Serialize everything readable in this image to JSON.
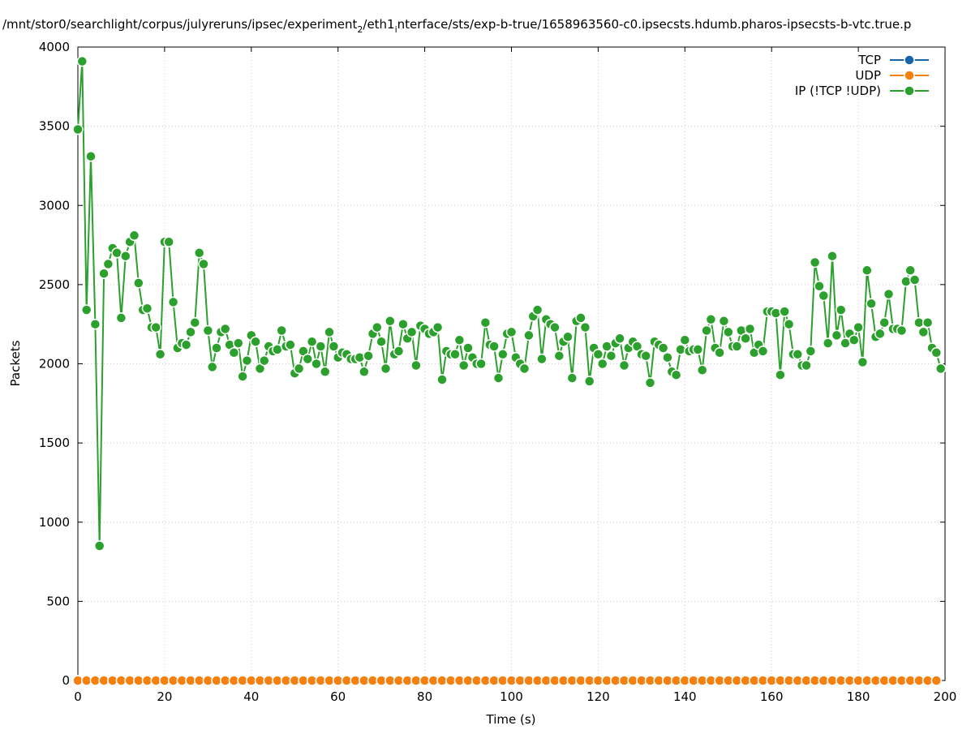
{
  "chart_data": {
    "type": "line",
    "title": "/mnt/stor0/searchlight/corpus/julyreruns/ipsec/experiment_2/eth1_interface/sts/exp-b-true/1658963560-c0.ipsecsts.hdumb.pharos-ipsecsts-b-vtc.true.p",
    "title_parts": {
      "a": "/mnt/stor0/searchlight/corpus/julyreruns/ipsec/experiment",
      "sub1": "2",
      "b": "/eth1",
      "sub2": "i",
      "c": "nterface/sts/exp-b-true/1658963560-c0.ipsecsts.hdumb.pharos-ipsecsts-b-vtc.true.p"
    },
    "xlabel": "Time (s)",
    "ylabel": "Packets",
    "xlim": [
      0,
      200
    ],
    "ylim": [
      0,
      4000
    ],
    "x_ticks": [
      0,
      20,
      40,
      60,
      80,
      100,
      120,
      140,
      160,
      180,
      200
    ],
    "y_ticks": [
      0,
      500,
      1000,
      1500,
      2000,
      2500,
      3000,
      3500,
      4000
    ],
    "grid": true,
    "legend_position": "top-right",
    "series": [
      {
        "name": "TCP",
        "color": "#1764ab",
        "x": [
          0,
          198
        ],
        "y": [
          0,
          0
        ]
      },
      {
        "name": "UDP",
        "color": "#f5800f",
        "x": [
          0,
          2,
          4,
          6,
          8,
          10,
          12,
          14,
          16,
          18,
          20,
          22,
          24,
          26,
          28,
          30,
          32,
          34,
          36,
          38,
          40,
          42,
          44,
          46,
          48,
          50,
          52,
          54,
          56,
          58,
          60,
          62,
          64,
          66,
          68,
          70,
          72,
          74,
          76,
          78,
          80,
          82,
          84,
          86,
          88,
          90,
          92,
          94,
          96,
          98,
          100,
          102,
          104,
          106,
          108,
          110,
          112,
          114,
          116,
          118,
          120,
          122,
          124,
          126,
          128,
          130,
          132,
          134,
          136,
          138,
          140,
          142,
          144,
          146,
          148,
          150,
          152,
          154,
          156,
          158,
          160,
          162,
          164,
          166,
          168,
          170,
          172,
          174,
          176,
          178,
          180,
          182,
          184,
          186,
          188,
          190,
          192,
          194,
          196,
          198
        ],
        "y": [
          0,
          0,
          0,
          0,
          0,
          0,
          0,
          0,
          0,
          0,
          0,
          0,
          0,
          0,
          0,
          0,
          0,
          0,
          0,
          0,
          0,
          0,
          0,
          0,
          0,
          0,
          0,
          0,
          0,
          0,
          0,
          0,
          0,
          0,
          0,
          0,
          0,
          0,
          0,
          0,
          0,
          0,
          0,
          0,
          0,
          0,
          0,
          0,
          0,
          0,
          0,
          0,
          0,
          0,
          0,
          0,
          0,
          0,
          0,
          0,
          0,
          0,
          0,
          0,
          0,
          0,
          0,
          0,
          0,
          0,
          0,
          0,
          0,
          0,
          0,
          0,
          0,
          0,
          0,
          0,
          0,
          0,
          0,
          0,
          0,
          0,
          0,
          0,
          0,
          0,
          0,
          0,
          0,
          0,
          0,
          0,
          0,
          0,
          0,
          0
        ]
      },
      {
        "name": "IP (!TCP  !UDP)",
        "color": "#2ca02c",
        "x": [
          0,
          1,
          2,
          3,
          4,
          5,
          6,
          7,
          8,
          9,
          10,
          11,
          12,
          13,
          14,
          15,
          16,
          17,
          18,
          19,
          20,
          21,
          22,
          23,
          24,
          25,
          26,
          27,
          28,
          29,
          30,
          31,
          32,
          33,
          34,
          35,
          36,
          37,
          38,
          39,
          40,
          41,
          42,
          43,
          44,
          45,
          46,
          47,
          48,
          49,
          50,
          51,
          52,
          53,
          54,
          55,
          56,
          57,
          58,
          59,
          60,
          61,
          62,
          63,
          64,
          65,
          66,
          67,
          68,
          69,
          70,
          71,
          72,
          73,
          74,
          75,
          76,
          77,
          78,
          79,
          80,
          81,
          82,
          83,
          84,
          85,
          86,
          87,
          88,
          89,
          90,
          91,
          92,
          93,
          94,
          95,
          96,
          97,
          98,
          99,
          100,
          101,
          102,
          103,
          104,
          105,
          106,
          107,
          108,
          109,
          110,
          111,
          112,
          113,
          114,
          115,
          116,
          117,
          118,
          119,
          120,
          121,
          122,
          123,
          124,
          125,
          126,
          127,
          128,
          129,
          130,
          131,
          132,
          133,
          134,
          135,
          136,
          137,
          138,
          139,
          140,
          141,
          142,
          143,
          144,
          145,
          146,
          147,
          148,
          149,
          150,
          151,
          152,
          153,
          154,
          155,
          156,
          157,
          158,
          159,
          160,
          161,
          162,
          163,
          164,
          165,
          166,
          167,
          168,
          169,
          170,
          171,
          172,
          173,
          174,
          175,
          176,
          177,
          178,
          179,
          180,
          181,
          182,
          183,
          184,
          185,
          186,
          187,
          188,
          189,
          190,
          191,
          192,
          193,
          194,
          195,
          196,
          197,
          198,
          199
        ],
        "y": [
          3480,
          3910,
          2340,
          3310,
          2250,
          850,
          2570,
          2630,
          2730,
          2700,
          2290,
          2680,
          2770,
          2810,
          2510,
          2340,
          2350,
          2230,
          2230,
          2060,
          2770,
          2770,
          2390,
          2100,
          2130,
          2120,
          2200,
          2260,
          2700,
          2630,
          2210,
          1980,
          2100,
          2200,
          2220,
          2120,
          2070,
          2130,
          1920,
          2020,
          2180,
          2140,
          1970,
          2020,
          2110,
          2080,
          2090,
          2210,
          2110,
          2120,
          1940,
          1970,
          2080,
          2030,
          2140,
          2000,
          2110,
          1950,
          2200,
          2110,
          2040,
          2070,
          2060,
          2030,
          2030,
          2040,
          1950,
          2050,
          2190,
          2230,
          2140,
          1970,
          2270,
          2060,
          2080,
          2250,
          2160,
          2200,
          1990,
          2240,
          2220,
          2190,
          2200,
          2230,
          1900,
          2080,
          2060,
          2060,
          2150,
          1990,
          2100,
          2040,
          2000,
          2000,
          2260,
          2120,
          2110,
          1910,
          2060,
          2190,
          2200,
          2040,
          2000,
          1970,
          2180,
          2300,
          2340,
          2030,
          2280,
          2250,
          2230,
          2050,
          2140,
          2170,
          1910,
          2270,
          2290,
          2230,
          1890,
          2100,
          2060,
          2000,
          2110,
          2050,
          2130,
          2160,
          1990,
          2100,
          2140,
          2110,
          2060,
          2050,
          1880,
          2140,
          2120,
          2100,
          2040,
          1950,
          1930,
          2090,
          2150,
          2080,
          2090,
          2090,
          1960,
          2210,
          2280,
          2100,
          2070,
          2270,
          2200,
          2110,
          2110,
          2210,
          2160,
          2220,
          2070,
          2120,
          2080,
          2330,
          2330,
          2320,
          1930,
          2330,
          2250,
          2060,
          2060,
          1990,
          1990,
          2080,
          2640,
          2490,
          2430,
          2130,
          2680,
          2180,
          2340,
          2130,
          2190,
          2150,
          2230,
          2010,
          2590,
          2380,
          2170,
          2190,
          2260,
          2440,
          2220,
          2220,
          2210,
          2520,
          2590,
          2530,
          2260,
          2200,
          2260,
          2100,
          2070,
          1970
        ]
      }
    ]
  }
}
